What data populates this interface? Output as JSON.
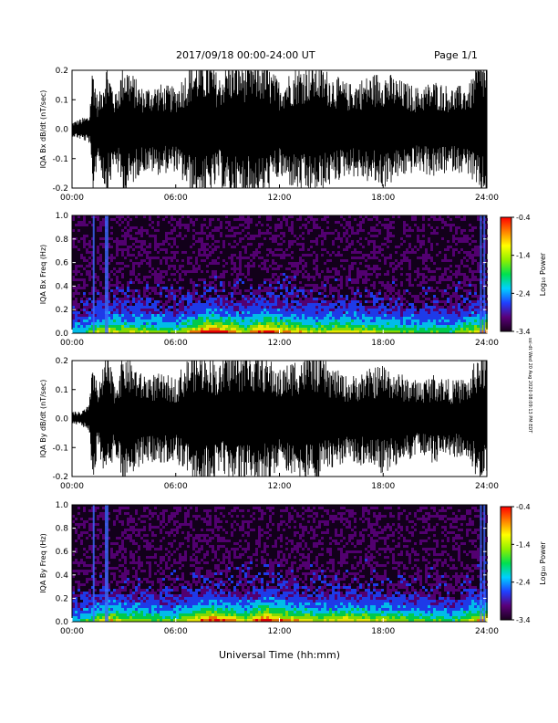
{
  "header": {
    "title": "2017/09/18  00:00-24:00 UT",
    "page": "Page 1/1"
  },
  "side_note": "ssi-dt Wed 20 Aug 2020 08:09:13 PM EDT",
  "xaxis": {
    "label": "Universal Time (hh:mm)",
    "ticks": [
      "00:00",
      "06:00",
      "12:00",
      "18:00",
      "24:00"
    ],
    "range_hours": [
      0,
      24
    ]
  },
  "colorbar": {
    "label": "Log₁₀ Power",
    "ticks": [
      "-0.4",
      "-1.4",
      "-2.4",
      "-3.4"
    ],
    "range": [
      -3.4,
      -0.4
    ],
    "colors": [
      "#1a001e",
      "#5a007a",
      "#2040ff",
      "#00d0ff",
      "#00e050",
      "#90f000",
      "#ffff00",
      "#ff8000",
      "#ff0000"
    ]
  },
  "chart_data": [
    {
      "type": "line",
      "ylabel": "IQA Bx dB/dt (nT/sec)",
      "ylim": [
        -0.2,
        0.2
      ],
      "yticks": [
        "0.2",
        "0.1",
        "0.0",
        "-0.1",
        "-0.2"
      ],
      "color": "#000000",
      "envelope_hours": [
        0,
        0.5,
        1,
        1.2,
        1.5,
        2,
        2.5,
        3,
        4,
        5,
        6,
        7,
        7.5,
        8,
        8.5,
        9,
        10,
        11,
        12,
        13,
        14,
        15,
        16,
        17,
        18,
        19,
        20,
        21,
        22,
        23,
        23.5,
        24
      ],
      "envelope_amplitude": [
        0.02,
        0.03,
        0.04,
        0.2,
        0.08,
        0.2,
        0.1,
        0.2,
        0.12,
        0.13,
        0.12,
        0.2,
        0.2,
        0.2,
        0.15,
        0.2,
        0.2,
        0.2,
        0.14,
        0.18,
        0.2,
        0.16,
        0.13,
        0.15,
        0.17,
        0.14,
        0.12,
        0.14,
        0.12,
        0.13,
        0.2,
        0.2
      ]
    },
    {
      "type": "heatmap",
      "ylabel": "IQA Bx Freq (Hz)",
      "ylim": [
        0,
        1.0
      ],
      "yticks": [
        "1.0",
        "0.8",
        "0.6",
        "0.4",
        "0.2",
        "0.0"
      ],
      "activity_hours": [
        0,
        2,
        4,
        6,
        8,
        10,
        11,
        12,
        14,
        16,
        18,
        20,
        22,
        24
      ],
      "activity_level": [
        0.2,
        0.5,
        0.4,
        0.35,
        0.75,
        0.45,
        0.7,
        0.6,
        0.45,
        0.5,
        0.4,
        0.35,
        0.3,
        0.6
      ]
    },
    {
      "type": "line",
      "ylabel": "IQA By dB/dt (nT/sec)",
      "ylim": [
        -0.2,
        0.2
      ],
      "yticks": [
        "0.2",
        "0.1",
        "0.0",
        "-0.1",
        "-0.2"
      ],
      "color": "#000000",
      "envelope_hours": [
        0,
        0.5,
        1,
        1.2,
        1.5,
        2,
        2.5,
        3,
        4,
        5,
        6,
        7,
        7.5,
        8,
        8.5,
        9,
        10,
        11,
        12,
        13,
        14,
        15,
        16,
        17,
        18,
        19,
        20,
        21,
        22,
        23,
        23.5,
        24
      ],
      "envelope_amplitude": [
        0.02,
        0.02,
        0.04,
        0.2,
        0.08,
        0.2,
        0.1,
        0.2,
        0.13,
        0.13,
        0.12,
        0.2,
        0.2,
        0.2,
        0.15,
        0.2,
        0.2,
        0.2,
        0.14,
        0.18,
        0.2,
        0.15,
        0.12,
        0.14,
        0.16,
        0.13,
        0.11,
        0.13,
        0.11,
        0.12,
        0.2,
        0.2
      ]
    },
    {
      "type": "heatmap",
      "ylabel": "IQA By Freq (Hz)",
      "ylim": [
        0,
        1.0
      ],
      "yticks": [
        "1.0",
        "0.8",
        "0.6",
        "0.4",
        "0.2",
        "0.0"
      ],
      "activity_hours": [
        0,
        2,
        4,
        6,
        8,
        10,
        11,
        12,
        14,
        16,
        18,
        20,
        22,
        24
      ],
      "activity_level": [
        0.2,
        0.5,
        0.4,
        0.35,
        0.7,
        0.45,
        0.75,
        0.6,
        0.45,
        0.5,
        0.45,
        0.35,
        0.3,
        0.6
      ]
    }
  ]
}
